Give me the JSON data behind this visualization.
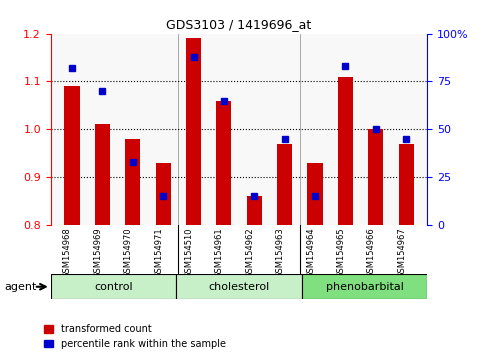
{
  "title": "GDS3103 / 1419696_at",
  "samples": [
    "GSM154968",
    "GSM154969",
    "GSM154970",
    "GSM154971",
    "GSM154510",
    "GSM154961",
    "GSM154962",
    "GSM154963",
    "GSM154964",
    "GSM154965",
    "GSM154966",
    "GSM154967"
  ],
  "red_values": [
    1.09,
    1.01,
    0.98,
    0.93,
    1.19,
    1.06,
    0.86,
    0.97,
    0.93,
    1.11,
    1.0,
    0.97
  ],
  "blue_values": [
    82,
    70,
    33,
    15,
    88,
    65,
    15,
    45,
    15,
    83,
    50,
    45
  ],
  "ylim_left": [
    0.8,
    1.2
  ],
  "ylim_right": [
    0,
    100
  ],
  "yticks_left": [
    0.8,
    0.9,
    1.0,
    1.1,
    1.2
  ],
  "yticks_right": [
    0,
    25,
    50,
    75,
    100
  ],
  "yticklabels_right": [
    "0",
    "25",
    "50",
    "75",
    "100%"
  ],
  "group_labels": [
    "control",
    "cholesterol",
    "phenobarbital"
  ],
  "group_starts": [
    0,
    4,
    8
  ],
  "group_ends": [
    4,
    8,
    12
  ],
  "group_colors": [
    "#c8f0c8",
    "#c8f0c8",
    "#80e080"
  ],
  "red_color": "#cc0000",
  "blue_color": "#0000cc",
  "bar_width": 0.5,
  "legend_labels": [
    "transformed count",
    "percentile rank within the sample"
  ],
  "agent_label": "agent",
  "group_dividers": [
    4,
    8
  ],
  "grid_yticks": [
    0.9,
    1.0,
    1.1
  ],
  "sample_bg": "#c8c8c8",
  "plot_bg": "#f8f8f8"
}
